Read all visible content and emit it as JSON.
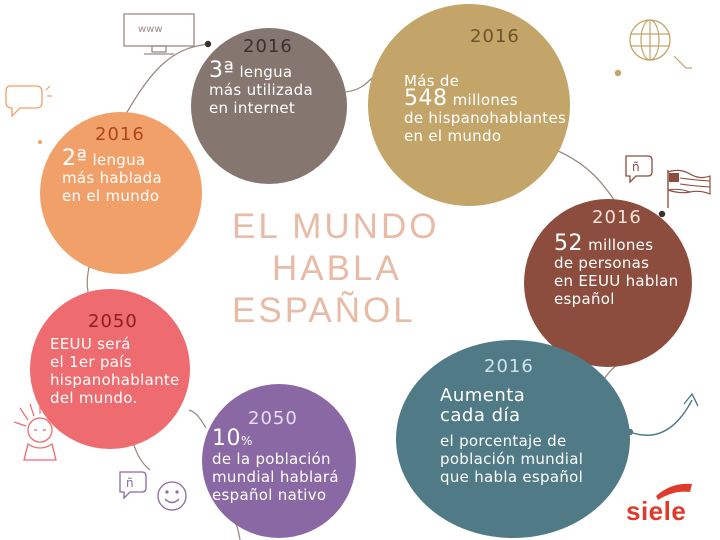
{
  "title_lines": [
    "EL MUNDO",
    "HABLA",
    "ESPAÑOL"
  ],
  "items": [
    {
      "year": "2016",
      "highlight": "3ª",
      "lines": [
        "lengua",
        "más utilizada",
        "en internet"
      ]
    },
    {
      "year": "2016",
      "prefix": "Más de",
      "highlight": "548",
      "lines": [
        "millones",
        "de hispanohablantes",
        "en el mundo"
      ]
    },
    {
      "year": "2016",
      "highlight": "2ª",
      "lines": [
        "lengua",
        "más hablada",
        "en el mundo"
      ]
    },
    {
      "year": "2016",
      "highlight": "52",
      "lines": [
        "millones",
        "de personas",
        "en EEUU hablan",
        "español"
      ]
    },
    {
      "year": "2050",
      "lines": [
        "EEUU será",
        "el 1er país",
        "hispanohablante",
        "del mundo."
      ]
    },
    {
      "year": "2050",
      "highlight": "10",
      "unit": "%",
      "lines": [
        "de la población",
        "mundial hablará",
        "español nativo"
      ]
    },
    {
      "year": "2016",
      "headline": [
        "Aumenta",
        "cada día"
      ],
      "lines": [
        "el porcentaje de",
        "población mundial",
        "que habla español"
      ]
    }
  ],
  "icons": {
    "www_label": "www",
    "computer": "computer-icon",
    "globe": "globe-icon",
    "speech": "speech-bubble-icon",
    "flag": "usa-flag-icon",
    "liberty": "statue-of-liberty-icon",
    "smile": "smiley-icon",
    "arrow": "trend-arrow-icon",
    "enye": "ñ"
  },
  "logo": "siele",
  "colors": {
    "gray": "#857670",
    "gold": "#c3a56a",
    "orange": "#f2a069",
    "brown": "#8c4d3e",
    "coral": "#ee6b6f",
    "purple": "#8a68a4",
    "teal": "#507b86",
    "title": "#e7bba6",
    "logo": "#e03b2a"
  }
}
